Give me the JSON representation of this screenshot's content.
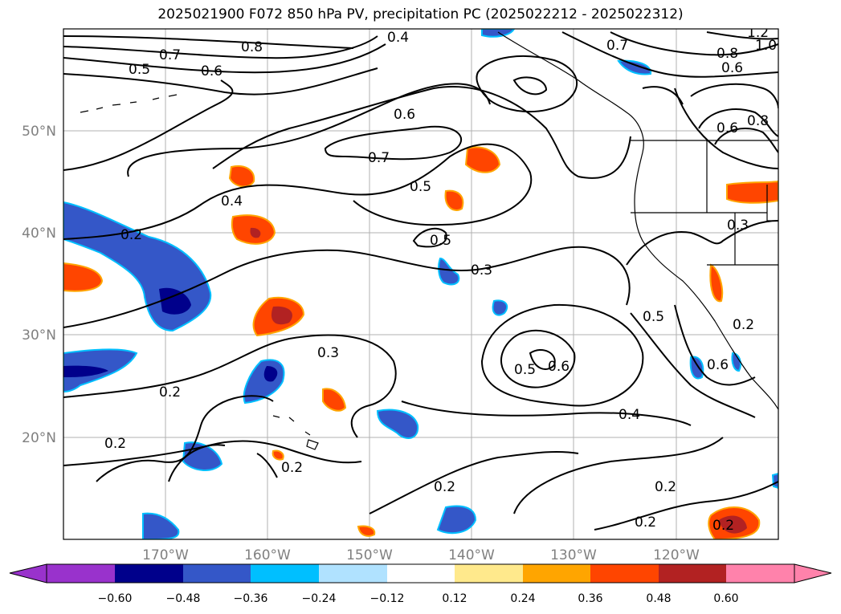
{
  "title": "2025021900 F072 850 hPa PV, precipitation PC (2025022212 - 2025022312)",
  "map": {
    "lat_labels": [
      "50°N",
      "40°N",
      "30°N",
      "20°N"
    ],
    "lon_labels": [
      "170°W",
      "160°W",
      "150°W",
      "140°W",
      "130°W",
      "120°W"
    ],
    "gridlines": true,
    "contour_labels": [
      "0.8",
      "0.7",
      "0.5",
      "0.6",
      "0.4",
      "0.6",
      "0.7",
      "0.5",
      "0.4",
      "0.2",
      "0.5",
      "0.3",
      "0.3",
      "0.2",
      "0.2",
      "0.2",
      "0.2",
      "0.5",
      "0.6",
      "0.4",
      "0.2",
      "0.2",
      "0.5",
      "0.6",
      "0.3",
      "0.2",
      "0.7",
      "0.8",
      "0.6",
      "1.0",
      "1.2",
      "0.8",
      "0.6"
    ]
  },
  "colorbar": {
    "ticks": [
      "−0.60",
      "−0.48",
      "−0.36",
      "−0.24",
      "−0.12",
      "0.12",
      "0.24",
      "0.36",
      "0.48",
      "0.60"
    ],
    "colors": [
      "#9932cc",
      "#00008b",
      "#3457c8",
      "#00bfff",
      "#b0e2ff",
      "#ffffff",
      "#ffe98c",
      "#ffa500",
      "#ff4500",
      "#b22222",
      "#ff82ab"
    ],
    "extend": "both"
  }
}
